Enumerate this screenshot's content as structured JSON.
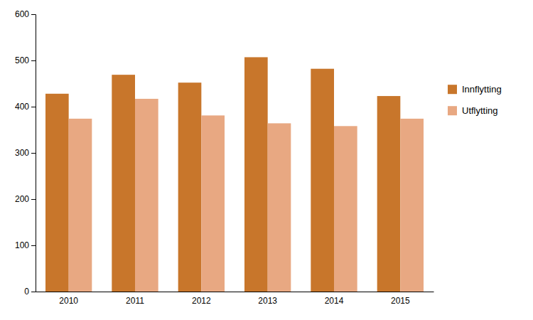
{
  "chart_data": {
    "type": "bar",
    "categories": [
      "2010",
      "2011",
      "2012",
      "2013",
      "2014",
      "2015"
    ],
    "series": [
      {
        "name": "Innflytting",
        "color": "#C8762B",
        "values": [
          428,
          469,
          452,
          507,
          482,
          423
        ]
      },
      {
        "name": "Utflytting",
        "color": "#E8A882",
        "values": [
          374,
          417,
          381,
          364,
          358,
          374
        ]
      }
    ],
    "ylim": [
      0,
      600
    ],
    "yticks": [
      0,
      100,
      200,
      300,
      400,
      500,
      600
    ],
    "grid": false,
    "legend": "right"
  }
}
